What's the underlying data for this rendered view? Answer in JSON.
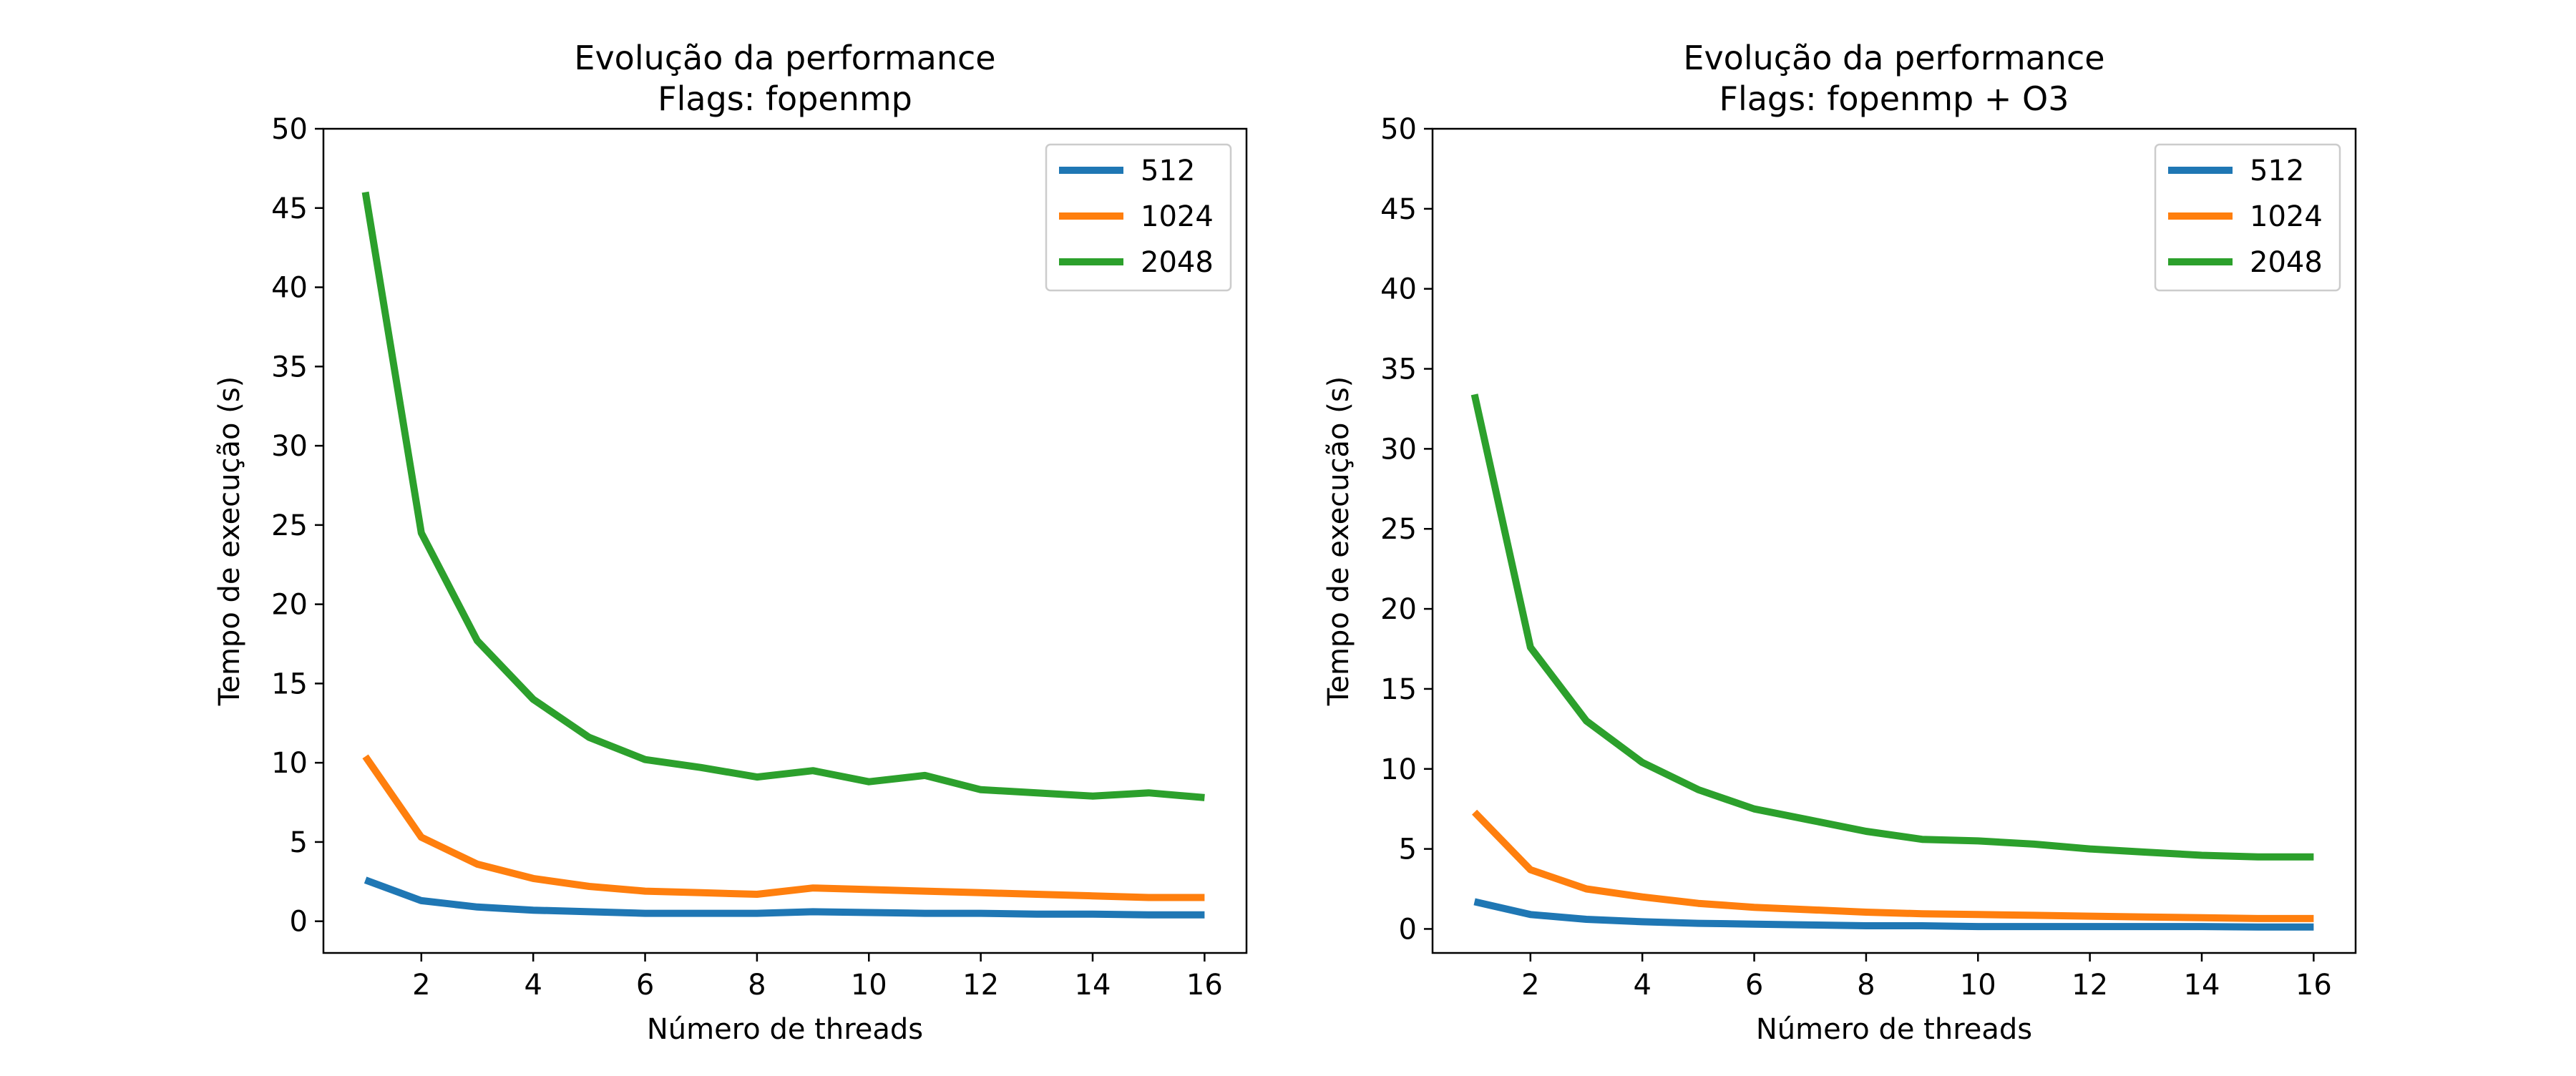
{
  "colors": {
    "512": "#1f77b4",
    "1024": "#ff7f0e",
    "2048": "#2ca02c"
  },
  "chart_data": [
    {
      "type": "line",
      "title_lines": [
        "Evolução da performance",
        "Flags: fopenmp"
      ],
      "xlabel": "Número de threads",
      "ylabel": "Tempo de execução (s)",
      "xlim": [
        0.25,
        16.75
      ],
      "ylim": [
        -2,
        50
      ],
      "xticks": [
        2,
        4,
        6,
        8,
        10,
        12,
        14,
        16
      ],
      "yticks": [
        0,
        5,
        10,
        15,
        20,
        25,
        30,
        35,
        40,
        45,
        50
      ],
      "legend_position": "top-right",
      "x": [
        1,
        2,
        3,
        4,
        5,
        6,
        7,
        8,
        9,
        10,
        11,
        12,
        13,
        14,
        15,
        16
      ],
      "series": [
        {
          "name": "512",
          "color_key": "512",
          "values": [
            2.6,
            1.3,
            0.9,
            0.7,
            0.6,
            0.5,
            0.5,
            0.5,
            0.6,
            0.55,
            0.5,
            0.5,
            0.45,
            0.45,
            0.4,
            0.4
          ]
        },
        {
          "name": "1024",
          "color_key": "1024",
          "values": [
            10.4,
            5.3,
            3.6,
            2.7,
            2.2,
            1.9,
            1.8,
            1.7,
            2.1,
            2.0,
            1.9,
            1.8,
            1.7,
            1.6,
            1.5,
            1.5
          ]
        },
        {
          "name": "2048",
          "color_key": "2048",
          "values": [
            46.0,
            24.5,
            17.7,
            14.0,
            11.6,
            10.2,
            9.7,
            9.1,
            9.5,
            8.8,
            9.2,
            8.3,
            8.1,
            7.9,
            8.1,
            7.8
          ]
        }
      ]
    },
    {
      "type": "line",
      "title_lines": [
        "Evolução da performance",
        "Flags: fopenmp + O3"
      ],
      "xlabel": "Número de threads",
      "ylabel": "Tempo de execução (s)",
      "xlim": [
        0.25,
        16.75
      ],
      "ylim": [
        -1.5,
        50
      ],
      "xticks": [
        2,
        4,
        6,
        8,
        10,
        12,
        14,
        16
      ],
      "yticks": [
        0,
        5,
        10,
        15,
        20,
        25,
        30,
        35,
        40,
        45,
        50
      ],
      "legend_position": "top-right",
      "x": [
        1,
        2,
        3,
        4,
        5,
        6,
        7,
        8,
        9,
        10,
        11,
        12,
        13,
        14,
        15,
        16
      ],
      "series": [
        {
          "name": "512",
          "color_key": "512",
          "values": [
            1.7,
            0.9,
            0.6,
            0.45,
            0.35,
            0.3,
            0.25,
            0.2,
            0.2,
            0.15,
            0.15,
            0.15,
            0.15,
            0.15,
            0.12,
            0.12
          ]
        },
        {
          "name": "1024",
          "color_key": "1024",
          "values": [
            7.3,
            3.7,
            2.5,
            2.0,
            1.6,
            1.35,
            1.2,
            1.05,
            0.95,
            0.9,
            0.85,
            0.8,
            0.75,
            0.7,
            0.65,
            0.65
          ]
        },
        {
          "name": "2048",
          "color_key": "2048",
          "values": [
            33.4,
            17.6,
            13.0,
            10.4,
            8.7,
            7.5,
            6.8,
            6.1,
            5.6,
            5.5,
            5.3,
            5.0,
            4.8,
            4.6,
            4.5,
            4.5
          ]
        }
      ]
    }
  ]
}
